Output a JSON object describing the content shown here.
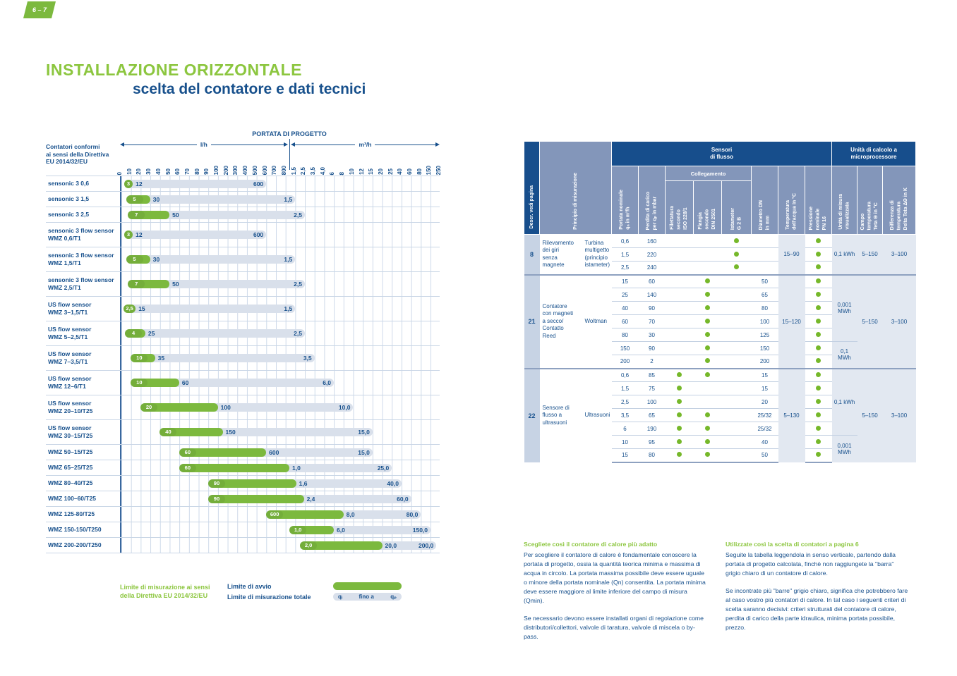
{
  "page_tag": "6 – 7",
  "title": {
    "line1": "INSTALLAZIONE ORIZZONTALE",
    "line2": "scelta del contatore e dati tecnici"
  },
  "colors": {
    "green": "#7cb93e",
    "title_green": "#8cc63f",
    "navy": "#17508c",
    "header_slate": "#8396ba",
    "bar_gray": "#d9e0eb",
    "descr_bg": "#c7d3e4",
    "shade_bg": "#e2e8f1"
  },
  "chart_data": {
    "type": "range_bars",
    "title": "PORTATA DI PROGETTO",
    "axis_note": "Contatori conformi\nai sensi della Direttiva\nEU 2014/32/EU",
    "unit_left": "l/h",
    "unit_right": "m³/h",
    "ticks": [
      "0",
      "10",
      "20",
      "30",
      "40",
      "50",
      "60",
      "70",
      "80",
      "90",
      "100",
      "200",
      "300",
      "400",
      "500",
      "600",
      "700",
      "800",
      "1,5",
      "2,5",
      "3,5",
      "4,0",
      "6",
      "8",
      "10",
      "12",
      "15",
      "20",
      "25",
      "40",
      "60",
      "80",
      "150",
      "250"
    ],
    "divider_tick": 17.5,
    "rows": [
      {
        "label": "sensonic 3 0,6",
        "s": 0.3,
        "g": 1.2,
        "e": 15,
        "sl": "3",
        "gl": "12",
        "el": "600"
      },
      {
        "label": "sensonic 3 1,5",
        "s": 0.5,
        "g": 3,
        "e": 18,
        "sl": "5",
        "gl": "30",
        "el": "1,5"
      },
      {
        "label": "sensonic 3 2,5",
        "s": 0.7,
        "g": 5,
        "e": 19,
        "sl": "7",
        "gl": "50",
        "el": "2,5"
      },
      {
        "label": "sensonic 3 flow sensor\nWMZ 0,6/T1",
        "s": 0.3,
        "g": 1.2,
        "e": 15,
        "sl": "3",
        "gl": "12",
        "el": "600"
      },
      {
        "label": "sensonic 3 flow sensor\nWMZ 1,5/T1",
        "s": 0.5,
        "g": 3,
        "e": 18,
        "sl": "5",
        "gl": "30",
        "el": "1,5"
      },
      {
        "label": "sensonic 3 flow sensor\nWMZ 2,5/T1",
        "s": 0.7,
        "g": 5,
        "e": 19,
        "sl": "7",
        "gl": "50",
        "el": "2,5"
      },
      {
        "label": "US flow sensor\nWMZ 3–1,5/T1",
        "s": 0.25,
        "g": 1.5,
        "e": 18,
        "sl": "2,5",
        "gl": "15",
        "el": "1,5"
      },
      {
        "label": "US flow sensor\nWMZ 5–2,5/T1",
        "s": 0.4,
        "g": 2.5,
        "e": 19,
        "sl": "4",
        "gl": "25",
        "el": "2,5"
      },
      {
        "label": "US flow sensor\nWMZ 7–3,5/T1",
        "s": 1,
        "g": 3.5,
        "e": 20,
        "sl": "10",
        "gl": "35",
        "el": "3,5"
      },
      {
        "label": "US flow sensor\nWMZ 12–6/T1",
        "s": 1,
        "g": 6,
        "e": 22,
        "sl": "10",
        "gl": "60",
        "el": "6,0"
      },
      {
        "label": "US flow sensor\nWMZ 20–10/T25",
        "s": 2,
        "g": 10,
        "e": 24,
        "sl": "20",
        "gl": "100",
        "el": "10,0"
      },
      {
        "label": "US flow sensor\nWMZ 30–15/T25",
        "s": 4,
        "g": 10.5,
        "e": 26,
        "sl": "40",
        "gl": "150",
        "el": "15,0"
      },
      {
        "label": "WMZ 50–15/T25",
        "s": 6,
        "g": 15,
        "e": 26,
        "sl": "60",
        "gl": "600",
        "el": "15,0"
      },
      {
        "label": "WMZ 65–25/T25",
        "s": 6,
        "g": 17.4,
        "e": 28,
        "sl": "60",
        "gl": "1,0",
        "el": "25,0"
      },
      {
        "label": "WMZ 80–40/T25",
        "s": 9,
        "g": 18.1,
        "e": 29,
        "sl": "90",
        "gl": "1,6",
        "el": "40,0"
      },
      {
        "label": "WMZ 100–60/T25",
        "s": 9,
        "g": 18.9,
        "e": 30,
        "sl": "90",
        "gl": "2,4",
        "el": "60,0"
      },
      {
        "label": "WMZ 125-80/T25",
        "s": 15,
        "g": 23,
        "e": 31,
        "sl": "600",
        "gl": "8,0",
        "el": "80,0"
      },
      {
        "label": "WMZ 150-150/T250",
        "s": 17.4,
        "g": 22,
        "e": 32,
        "sl": "1,0",
        "gl": "6,0",
        "el": "150,0"
      },
      {
        "label": "WMZ 200-200/T250",
        "s": 18.5,
        "g": 27,
        "e": 32.6,
        "sl": "2,0",
        "gl": "20,0",
        "el": "200,0"
      }
    ]
  },
  "legend": {
    "title": "Limite di misurazione ai sensi della Direttiva EU 2014/32/EU",
    "item_green": "Limite di avvio",
    "item_gray": "Limite di misurazione totale",
    "bar_text": {
      "left": "qᵢ",
      "mid": "fino a",
      "right": "qₚ"
    }
  },
  "table": {
    "header": {
      "descr": "Descr. vedi pagina",
      "principio": "Principio di misurazione",
      "group_sensori": "Sensori\ndi flusso",
      "group_collegamento": "Collegamento",
      "group_unita": "Unità di calcolo a\nmicroprocessore",
      "cols": {
        "portata": "Portata nominale\nqₙ in m³/h",
        "perdita": "Perdita di carico\nper qₚ in mbar",
        "filettatura": "Filettatura\nsecondo\nISO 228/1",
        "flangia": "Flangia\nsecondo\nDIN 2501",
        "istameter": "Istameter\nG 2 B",
        "diametro": "Diametro DN\nin mm",
        "temperatura": "Temperatura\ndell'acqua in °C",
        "pressione": "Pressione\nnominale\nPN 16",
        "unita": "Unità di misura\nvisualizzata",
        "campo": "Campo\ntemperatura\nTeta Θ in °C",
        "differenza": "Differenza di\ntemperatura\nDelta Teta ΔΘ in K"
      }
    },
    "groups": [
      {
        "page": "8",
        "principio": "Rilevamento\ndei giri\nsenza\nmagnete",
        "tipo": "Turbina\nmultigetto\n(principio\nistameter)",
        "temperatura": "15–90",
        "campo": "5–150",
        "differenza": "3–100",
        "unita_spans": [
          {
            "text": "0,1 kWh",
            "rows": 3
          }
        ],
        "rows": [
          {
            "portata": "0,6",
            "perdita": "160",
            "fil": false,
            "fla": false,
            "ist": true,
            "dn": "",
            "pn": true
          },
          {
            "portata": "1,5",
            "perdita": "220",
            "fil": false,
            "fla": false,
            "ist": true,
            "dn": "",
            "pn": true
          },
          {
            "portata": "2,5",
            "perdita": "240",
            "fil": false,
            "fla": false,
            "ist": true,
            "dn": "",
            "pn": true
          }
        ]
      },
      {
        "page": "21",
        "principio": "Contatore\ncon magneti\na secco/\nContatto\nReed",
        "tipo": "Woltman",
        "temperatura": "15–120",
        "campo": "5–150",
        "differenza": "3–100",
        "unita_spans": [
          {
            "text": "0,001\nMWh",
            "rows": 5
          },
          {
            "text": "0,1\nMWh",
            "rows": 2
          }
        ],
        "rows": [
          {
            "portata": "15",
            "perdita": "60",
            "fil": false,
            "fla": true,
            "ist": false,
            "dn": "50",
            "pn": true
          },
          {
            "portata": "25",
            "perdita": "140",
            "fil": false,
            "fla": true,
            "ist": false,
            "dn": "65",
            "pn": true
          },
          {
            "portata": "40",
            "perdita": "90",
            "fil": false,
            "fla": true,
            "ist": false,
            "dn": "80",
            "pn": true
          },
          {
            "portata": "60",
            "perdita": "70",
            "fil": false,
            "fla": true,
            "ist": false,
            "dn": "100",
            "pn": true
          },
          {
            "portata": "80",
            "perdita": "30",
            "fil": false,
            "fla": true,
            "ist": false,
            "dn": "125",
            "pn": true
          },
          {
            "portata": "150",
            "perdita": "90",
            "fil": false,
            "fla": true,
            "ist": false,
            "dn": "150",
            "pn": true
          },
          {
            "portata": "200",
            "perdita": "2",
            "fil": false,
            "fla": true,
            "ist": false,
            "dn": "200",
            "pn": true
          }
        ]
      },
      {
        "page": "22",
        "principio": "Sensore di\nflusso a\nultrasuoni",
        "tipo": "Ultrasuoni",
        "temperatura": "5–130",
        "campo": "5–150",
        "differenza": "3–100",
        "unita_spans": [
          {
            "text": "0,1 kWh",
            "rows": 5
          },
          {
            "text": "0,001\nMWh",
            "rows": 2
          }
        ],
        "rows": [
          {
            "portata": "0,6",
            "perdita": "85",
            "fil": true,
            "fla": true,
            "ist": false,
            "dn": "15",
            "pn": true
          },
          {
            "portata": "1,5",
            "perdita": "75",
            "fil": true,
            "fla": false,
            "ist": false,
            "dn": "15",
            "pn": true
          },
          {
            "portata": "2,5",
            "perdita": "100",
            "fil": true,
            "fla": false,
            "ist": false,
            "dn": "20",
            "pn": true
          },
          {
            "portata": "3,5",
            "perdita": "65",
            "fil": true,
            "fla": true,
            "ist": false,
            "dn": "25/32",
            "pn": true
          },
          {
            "portata": "6",
            "perdita": "190",
            "fil": true,
            "fla": true,
            "ist": false,
            "dn": "25/32",
            "pn": true
          },
          {
            "portata": "10",
            "perdita": "95",
            "fil": true,
            "fla": true,
            "ist": false,
            "dn": "40",
            "pn": true
          },
          {
            "portata": "15",
            "perdita": "80",
            "fil": true,
            "fla": true,
            "ist": false,
            "dn": "50",
            "pn": true
          }
        ]
      }
    ]
  },
  "texts": {
    "columns": [
      {
        "heading": "Scegliete così il contatore di calore più adatto",
        "paragraphs": [
          "Per scegliere il contatore di calore è fondamentale conoscere la portata di progetto, ossia la quantità teorica minima e massima di acqua in circolo. La portata massima possibile deve essere uguale o minore della portata nominale (Qn) consentita. La portata minima deve essere maggiore al limite inferiore del campo di misura (Qmin).",
          "Se necessario devono essere installati organi di regolazione come distributori/collettori, valvole di taratura, valvole di miscela o by-pass."
        ]
      },
      {
        "heading": "Utilizzate così la scelta di contatori a pagina 6",
        "paragraphs": [
          "Seguite la tabella leggendola in senso verticale, partendo dalla portata di progetto calcolata, finchè non raggiungete la \"barra\" grigio chiaro di un contatore di calore.",
          "Se incontrate più \"barre\" grigio chiaro, significa che potrebbero fare al caso vostro più contatori di calore. In tal caso i seguenti criteri di scelta saranno decisivi: criteri strutturali del contatore di calore, perdita di carico della parte idraulica, minima portata possibile, prezzo."
        ]
      }
    ]
  }
}
